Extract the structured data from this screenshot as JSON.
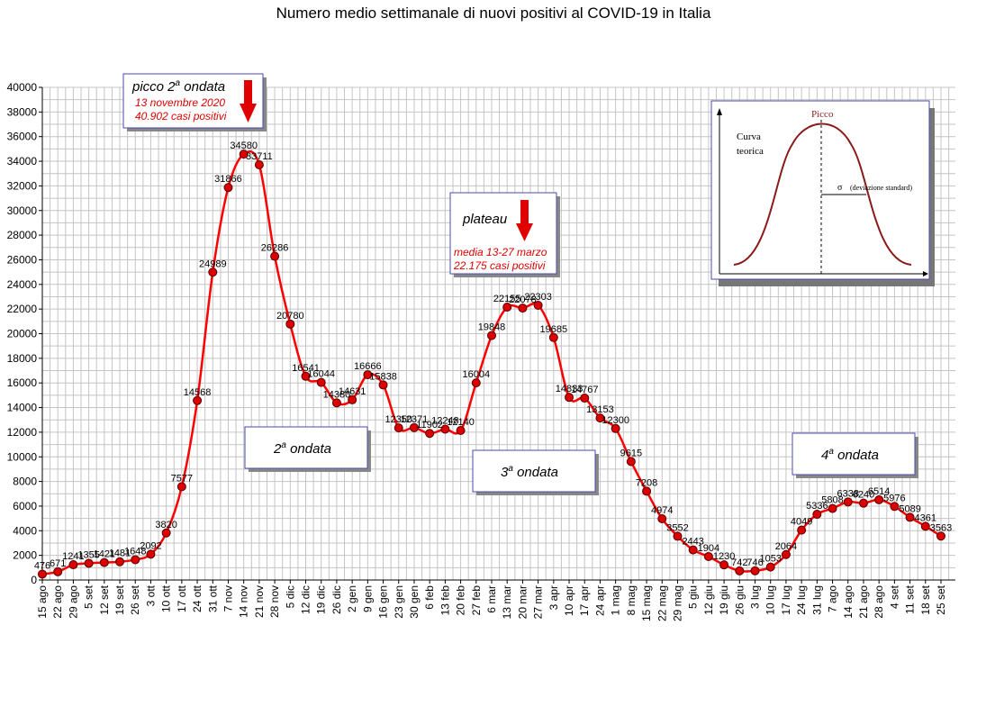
{
  "chart_data": {
    "type": "line",
    "title": "Numero medio settimanale di nuovi positivi al COVID-19 in Italia",
    "xlabel": "",
    "ylabel": "",
    "ylim": [
      0,
      40000
    ],
    "yticks": [
      0,
      2000,
      4000,
      6000,
      8000,
      10000,
      12000,
      14000,
      16000,
      18000,
      20000,
      22000,
      24000,
      26000,
      28000,
      30000,
      32000,
      34000,
      36000,
      38000,
      40000
    ],
    "grid": true,
    "categories": [
      "15 ago",
      "22 ago",
      "29 ago",
      "5 set",
      "12 set",
      "19 set",
      "26 set",
      "3 ott",
      "10 ott",
      "17 ott",
      "24 ott",
      "31 ott",
      "7 nov",
      "14 nov",
      "21 nov",
      "28 nov",
      "5 dic",
      "12 dic",
      "19 dic",
      "26 dic",
      "2 gen",
      "9 gen",
      "16 gen",
      "23 gen",
      "30 gen",
      "6 feb",
      "13 feb",
      "20 feb",
      "27 feb",
      "6 mar",
      "13 mar",
      "20 mar",
      "27 mar",
      "3 apr",
      "10 apr",
      "17 apr",
      "24 apr",
      "1 mag",
      "8 mag",
      "15 mag",
      "22 mag",
      "29 mag",
      "5 giu",
      "12 giu",
      "19 giu",
      "26 giu",
      "3 lug",
      "10 lug",
      "17 lug",
      "24 lug",
      "31 lug",
      "7 ago",
      "14 ago",
      "21 ago",
      "28 ago",
      "4 set",
      "11 set",
      "18 set",
      "25 set"
    ],
    "series": [
      {
        "name": "",
        "color": "#ff0000",
        "values": [
          476,
          671,
          1241,
          1355,
          1421,
          1481,
          1648,
          2092,
          3820,
          7577,
          14568,
          24989,
          31866,
          34580,
          33711,
          26286,
          20780,
          16541,
          16044,
          14380,
          14631,
          16666,
          15838,
          12350,
          12371,
          11902,
          12248,
          12140,
          16004,
          19848,
          22155,
          22078,
          22303,
          19685,
          14833,
          14767,
          13153,
          12300,
          9615,
          7208,
          4974,
          3552,
          2443,
          1904,
          1230,
          742,
          746,
          1053,
          2064,
          4049,
          5336,
          5808,
          6338,
          6240,
          6514,
          5976,
          5089,
          4361,
          3563
        ],
        "labels": [
          "476",
          "671",
          "1241",
          "1355",
          "1421",
          "1481",
          "1648",
          "2092",
          "3820",
          "7577",
          "14568",
          "24989",
          "31866",
          "34580",
          "33711",
          "26286",
          "20780",
          "16541",
          "16044",
          "14380",
          "14631",
          "16666",
          "15838",
          "12350",
          "12371",
          "11902",
          "12248",
          "12140",
          "16004",
          "19848",
          "22155",
          "22078",
          "22303",
          "19685",
          "14833",
          "14767",
          "13153",
          "12300",
          "9615",
          "7208",
          "4974",
          "3552",
          "2443",
          "1904",
          "1230",
          "742",
          "746",
          "1053",
          "2064",
          "4049",
          "5336",
          "5808",
          "6338",
          "6240",
          "6514",
          "5976",
          "5089",
          "4361",
          "3563"
        ]
      }
    ]
  },
  "annotations": {
    "peak": {
      "title": "picco 2",
      "sup": "a",
      "title_rest": " ondata",
      "line1": "13 novembre 2020",
      "line2": "40.902 casi positivi"
    },
    "plateau": {
      "title": "plateau",
      "line1": "media 13-27 marzo",
      "line2": "22.175 casi positivi"
    },
    "wave2": {
      "prefix": "2",
      "sup": "a",
      "rest": " ondata"
    },
    "wave3": {
      "prefix": "3",
      "sup": "a",
      "rest": " ondata"
    },
    "wave4": {
      "prefix": "4",
      "sup": "a",
      "rest": " ondata"
    },
    "inset": {
      "peak_label": "Picco",
      "curve_label_1": "Curva",
      "curve_label_2": "teorica",
      "sigma": "σ",
      "sigma_label": "(deviazione standard)"
    }
  },
  "colors": {
    "line": "#ff0000",
    "marker_fill": "#dd0000",
    "marker_stroke": "#550000",
    "grid": "#c4c4c4",
    "box_text_red": "#e00000",
    "inset_curve": "#8b1a1a"
  }
}
